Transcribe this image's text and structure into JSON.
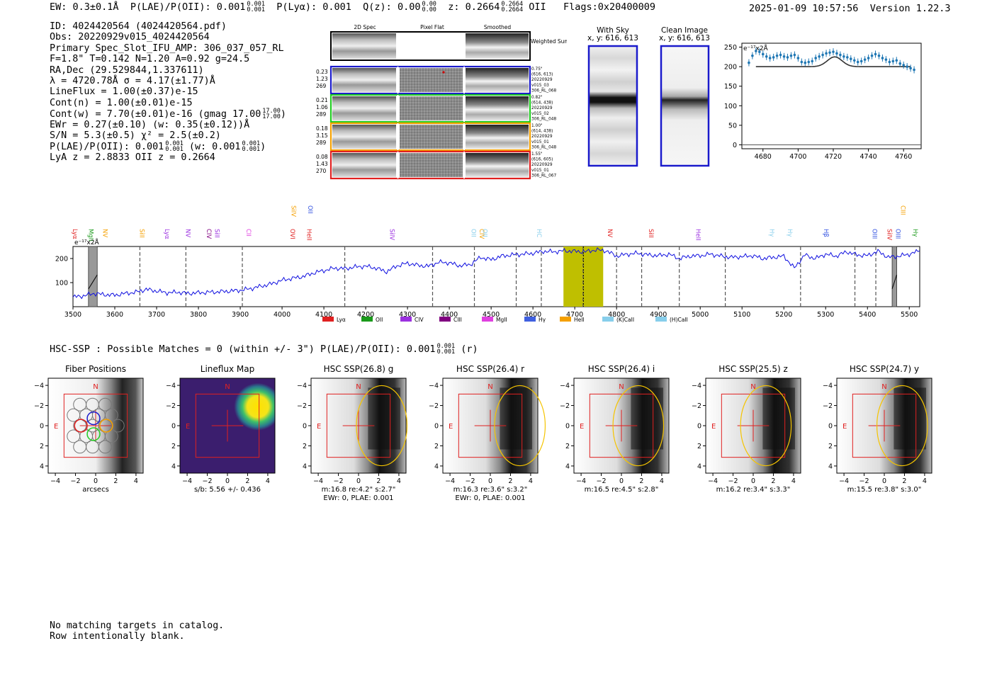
{
  "header": {
    "ew_label": "EW: 0.3±0.1Å",
    "plae_label": "P(LAE)/P(OII): 0.001",
    "plae_hi": "0.001",
    "plae_lo": "0.001",
    "plya_label": "P(Lyα): 0.001",
    "qz_label": "Q(z): 0.00",
    "qz_hi": "0.00",
    "qz_lo": "0.00",
    "z_label": "z: 0.2664",
    "z_hi": "0.2664",
    "z_lo": "0.2664",
    "z_line": "OII",
    "flags": "Flags:0x20400009",
    "timestamp": "2025-01-09 10:57:56",
    "version": "Version 1.22.3"
  },
  "info": {
    "id_line": "ID: 4024420564 (4024420564.pdf)",
    "obs_line": "Obs: 20220929v015_4024420564",
    "primary_line": "Primary Spec_Slot_IFU_AMP: 306_037_057_RL",
    "fwhm_line": "F=1.8\"  T=0.142  N=1.20  A=0.92  g=24.5",
    "radec_line": "RA,Dec (29.529844,1.337611)",
    "lambda_line": "λ = 4720.78Å  σ = 4.17(±1.77)Å",
    "lineflux_line": "LineFlux = 1.00(±0.37)e-15",
    "contn_line": "Cont(n) = 1.00(±0.01)e-15",
    "contw_line": "Cont(w) = 7.70(±0.01)e-16 (gmag 17.00",
    "contw_hi": "17.00",
    "contw_lo": "17.00",
    "contw_close": ")",
    "ewr_line": "EWr = 0.27(±0.10) (w: 0.35(±0.12))Å",
    "sn_line": "S/N = 5.3(±0.5)  χ² = 2.5(±0.2)",
    "plae_line": "P(LAE)/P(OII): 0.001",
    "plae_line_hi": "0.001",
    "plae_line_lo": "0.001",
    "plae_line_w": "(w: 0.001",
    "plae_line_w_hi": "0.001",
    "plae_line_w_lo": "0.001",
    "plae_line_close": ")",
    "lyaz_line": "LyA z = 2.8833  OII z = 0.2664"
  },
  "spec2d": {
    "col_headers": [
      "2D Spec",
      "Pixel Flat",
      "Smoothed"
    ],
    "weighted_sum_label": "Weighted Sum",
    "rows": [
      {
        "left": [
          "0.23",
          "1.23",
          "269"
        ],
        "right": [
          "0.75\"",
          "(616, 613)",
          "20220929",
          "v015_03",
          "306_RL_068"
        ],
        "color": "#1a1acc"
      },
      {
        "left": [
          "0.21",
          "1.06",
          "289"
        ],
        "right": [
          "0.82\"",
          "(614, 438)",
          "20220929",
          "v015_02",
          "306_RL_048"
        ],
        "color": "#22cc22"
      },
      {
        "left": [
          "0.18",
          "3.15",
          "289"
        ],
        "right": [
          "1.00\"",
          "(614, 438)",
          "20220929",
          "v015_01",
          "306_RL_048"
        ],
        "color": "#f5a000"
      },
      {
        "left": [
          "0.08",
          "1.43",
          "270"
        ],
        "right": [
          "1.55\"",
          "(616, 605)",
          "20220929",
          "v015_01",
          "306_RL_067"
        ],
        "color": "#e02020"
      }
    ]
  },
  "sky": {
    "with_sky_title": "With Sky",
    "with_sky_coords": "x, y: 616, 613",
    "clean_title": "Clean Image",
    "clean_coords": "x, y: 616, 613"
  },
  "zoom_chart": {
    "type": "scatter",
    "unit_label": "e⁻¹⁷x2Å",
    "xlim": [
      4668,
      4770
    ],
    "ylim": [
      -10,
      260
    ],
    "xticks": [
      4680,
      4700,
      4720,
      4740,
      4760
    ],
    "yticks": [
      0,
      50,
      100,
      150,
      200,
      250
    ],
    "x": [
      4672,
      4674,
      4676,
      4678,
      4680,
      4682,
      4684,
      4686,
      4688,
      4690,
      4692,
      4694,
      4696,
      4698,
      4700,
      4702,
      4704,
      4706,
      4708,
      4710,
      4712,
      4714,
      4716,
      4718,
      4720,
      4722,
      4724,
      4726,
      4728,
      4730,
      4732,
      4734,
      4736,
      4738,
      4740,
      4742,
      4744,
      4746,
      4748,
      4750,
      4752,
      4754,
      4756,
      4758,
      4760,
      4762,
      4764,
      4766
    ],
    "y": [
      210,
      228,
      240,
      238,
      232,
      226,
      222,
      224,
      228,
      230,
      226,
      224,
      228,
      230,
      222,
      212,
      210,
      212,
      214,
      222,
      226,
      230,
      234,
      236,
      238,
      234,
      230,
      226,
      224,
      220,
      216,
      212,
      214,
      218,
      222,
      228,
      232,
      228,
      222,
      218,
      212,
      214,
      216,
      208,
      204,
      200,
      196,
      192
    ],
    "fit": {
      "continuum": 200,
      "center": 4720.78,
      "sigma": 4.17,
      "amplitude": 25,
      "x_start": 4676,
      "x_end": 4764
    }
  },
  "chart_data": {
    "type": "line",
    "unit_label": "e⁻¹⁷x2Å",
    "xlim": [
      3500,
      5525
    ],
    "ylim": [
      0,
      250
    ],
    "xticks": [
      3500,
      3600,
      3700,
      3800,
      3900,
      4000,
      4100,
      4200,
      4300,
      4400,
      4500,
      4600,
      4700,
      4800,
      4900,
      5000,
      5100,
      5200,
      5300,
      5400,
      5500
    ],
    "yticks": [
      100,
      200
    ],
    "series": [
      {
        "name": "spectrum",
        "color": "#1010e0",
        "x": [
          3500,
          3525,
          3550,
          3575,
          3600,
          3625,
          3650,
          3675,
          3700,
          3725,
          3750,
          3775,
          3800,
          3825,
          3850,
          3875,
          3900,
          3925,
          3950,
          3975,
          4000,
          4025,
          4050,
          4075,
          4100,
          4125,
          4150,
          4175,
          4200,
          4225,
          4250,
          4275,
          4300,
          4325,
          4350,
          4375,
          4400,
          4425,
          4450,
          4475,
          4500,
          4525,
          4550,
          4575,
          4600,
          4625,
          4650,
          4675,
          4700,
          4725,
          4750,
          4775,
          4800,
          4825,
          4850,
          4875,
          4900,
          4925,
          4950,
          4975,
          5000,
          5025,
          5050,
          5075,
          5100,
          5125,
          5150,
          5175,
          5200,
          5225,
          5250,
          5275,
          5300,
          5325,
          5350,
          5375,
          5400,
          5425,
          5450,
          5475,
          5500,
          5525
        ],
        "y": [
          40,
          45,
          55,
          50,
          48,
          55,
          60,
          72,
          65,
          58,
          60,
          55,
          58,
          60,
          62,
          65,
          68,
          75,
          85,
          95,
          110,
          118,
          125,
          140,
          150,
          160,
          158,
          165,
          168,
          160,
          145,
          170,
          180,
          172,
          168,
          185,
          182,
          170,
          175,
          205,
          195,
          210,
          215,
          218,
          222,
          230,
          228,
          232,
          230,
          228,
          236,
          232,
          210,
          218,
          222,
          215,
          212,
          218,
          200,
          210,
          212,
          218,
          210,
          205,
          208,
          212,
          200,
          205,
          210,
          160,
          215,
          200,
          218,
          210,
          228,
          215,
          212,
          230,
          205,
          210,
          218,
          232
        ]
      }
    ],
    "line_markers": [
      {
        "label": "Lyα",
        "color": "#e02020",
        "x": 3500
      },
      {
        "label": "MgII",
        "color": "#1a9a1a",
        "x": 3538
      },
      {
        "label": "NV",
        "color": "#f5a000",
        "x": 3572
      },
      {
        "label": "SiII",
        "color": "#f5a000",
        "x": 3660
      },
      {
        "label": "Lyα",
        "color": "#9b30e0",
        "x": 3720
      },
      {
        "label": "NV",
        "color": "#9b30e0",
        "x": 3770
      },
      {
        "label": "CIV",
        "color": "#800080",
        "x": 3820
      },
      {
        "label": "SiII",
        "color": "#9b30e0",
        "x": 3840
      },
      {
        "label": "CII",
        "color": "#e040e0",
        "x": 3915
      },
      {
        "label": "OVI",
        "color": "#e02020",
        "x": 4020
      },
      {
        "label": "SiIV",
        "color": "#f5a000",
        "x": 4023
      },
      {
        "label": "HeII",
        "color": "#e02020",
        "x": 4060
      },
      {
        "label": "OII",
        "color": "#3050e0",
        "x": 4063
      },
      {
        "label": "SiIV",
        "color": "#9b30e0",
        "x": 4258
      },
      {
        "label": "OII",
        "color": "#87ceeb",
        "x": 4453
      },
      {
        "label": "CIV",
        "color": "#f5a000",
        "x": 4473
      },
      {
        "label": "OII",
        "color": "#87ceeb",
        "x": 4480
      },
      {
        "label": "HC",
        "color": "#87ceeb",
        "x": 4610
      },
      {
        "label": "NV",
        "color": "#e02020",
        "x": 4779
      },
      {
        "label": "SiII",
        "color": "#e02020",
        "x": 4878
      },
      {
        "label": "HeII",
        "color": "#9b30e0",
        "x": 4990
      },
      {
        "label": "Hγ",
        "color": "#87ceeb",
        "x": 5167
      },
      {
        "label": "Hγ",
        "color": "#87ceeb",
        "x": 5210
      },
      {
        "label": "Hβ",
        "color": "#3050e0",
        "x": 5296
      },
      {
        "label": "OIII",
        "color": "#3050e0",
        "x": 5412
      },
      {
        "label": "SiIV",
        "color": "#e02020",
        "x": 5448
      },
      {
        "label": "OIII",
        "color": "#3050e0",
        "x": 5468
      },
      {
        "label": "CIII",
        "color": "#f5a000",
        "x": 5480
      },
      {
        "label": "Hγ",
        "color": "#1a9a1a",
        "x": 5510
      }
    ],
    "dashed_lines": [
      3660,
      3770,
      3905,
      4150,
      4360,
      4460,
      4560,
      4620,
      4720,
      4800,
      4860,
      4950,
      5060,
      5240,
      5370,
      5420
    ],
    "highlight_band": [
      4673,
      4768
    ],
    "center_line": 4720.78,
    "masked_bands": [
      [
        3537,
        3558
      ],
      [
        5459,
        5470
      ]
    ],
    "legend": [
      {
        "label": "Lyα",
        "color": "#e02020"
      },
      {
        "label": "OII",
        "color": "#1a9a1a"
      },
      {
        "label": "CIV",
        "color": "#9b30e0"
      },
      {
        "label": "CIII",
        "color": "#800080"
      },
      {
        "label": "MgII",
        "color": "#e040e0"
      },
      {
        "label": "Hγ",
        "color": "#4060e0"
      },
      {
        "label": "HeII",
        "color": "#f5a000"
      },
      {
        "label": "(K)CaII",
        "color": "#87ceeb"
      },
      {
        "label": "(H)CaII",
        "color": "#87ceeb"
      }
    ]
  },
  "hsc": {
    "title": "HSC-SSP : Possible Matches = 0 (within +/- 3\")  P(LAE)/P(OII): 0.001",
    "title_hi": "0.001",
    "title_lo": "0.001",
    "title_band": "(r)",
    "compass_n": "N",
    "compass_e": "E",
    "tick_labels": [
      "−4",
      "−2",
      "0",
      "2",
      "4"
    ],
    "panels": [
      {
        "title": "Fiber Positions",
        "caption1": "arcsecs",
        "caption2": ""
      },
      {
        "title": "Lineflux Map",
        "caption1": "s/b: 5.56 +/- 0.436",
        "caption2": ""
      },
      {
        "title": "HSC SSP(26.8) g",
        "caption1": "m:16.8  re:4.2\"  s:2.7\"",
        "caption2": "EWr: 0, PLAE: 0.001"
      },
      {
        "title": "HSC SSP(26.4) r",
        "caption1": "m:16.3  re:3.6\"  s:3.2\"",
        "caption2": "EWr: 0, PLAE: 0.001"
      },
      {
        "title": "HSC SSP(26.4) i",
        "caption1": "m:16.5  re:4.5\"  s:2.8\"",
        "caption2": ""
      },
      {
        "title": "HSC SSP(25.5) z",
        "caption1": "m:16.2  re:3.4\"  s:3.3\"",
        "caption2": ""
      },
      {
        "title": "HSC SSP(24.7) y",
        "caption1": "m:15.5  re:3.8\"  s:3.0\"",
        "caption2": ""
      }
    ]
  },
  "footer": {
    "line1": "No matching targets in catalog.",
    "line2": "Row intentionally blank."
  }
}
